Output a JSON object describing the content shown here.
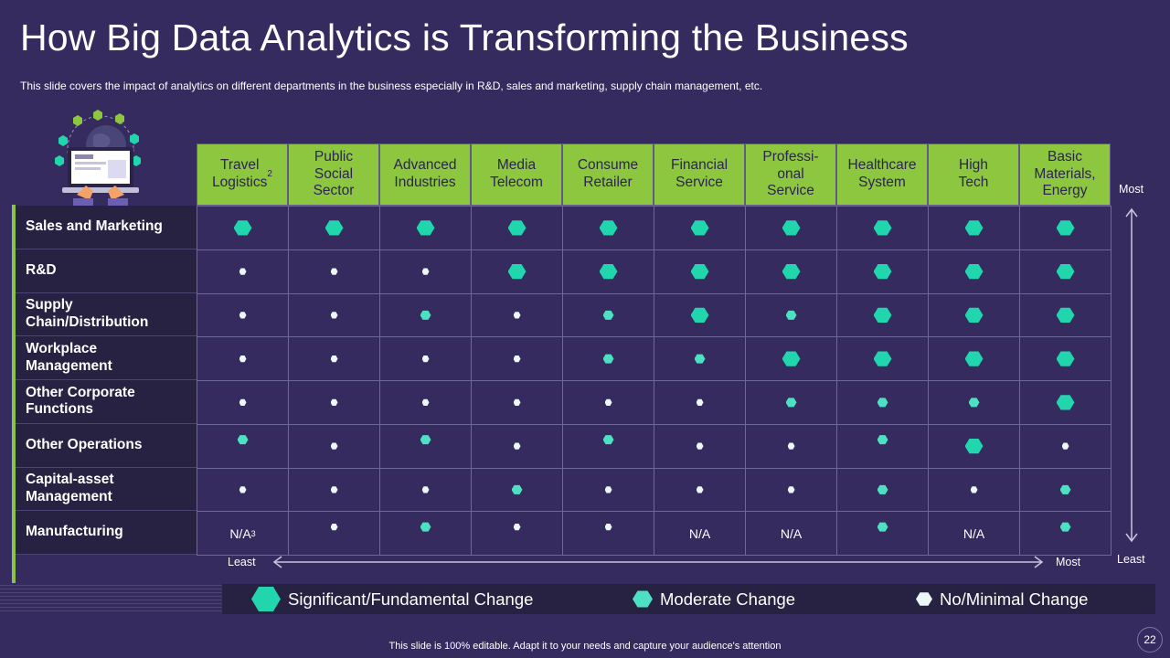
{
  "title": "How Big Data Analytics is Transforming the Business",
  "subtitle": "This slide covers the impact of analytics on different departments in the business especially in R&D, sales and marketing, supply chain management, etc.",
  "columns": [
    {
      "label": "Travel\nLogistics",
      "sup": "2"
    },
    {
      "label": "Public\nSocial\nSector",
      "sup": ""
    },
    {
      "label": "Advanced\nIndustries",
      "sup": ""
    },
    {
      "label": "Media\nTelecom",
      "sup": ""
    },
    {
      "label": "Consume\nRetailer",
      "sup": ""
    },
    {
      "label": "Financial\nService",
      "sup": ""
    },
    {
      "label": "Professi-\nonal\nService",
      "sup": ""
    },
    {
      "label": "Healthcare\nSystem",
      "sup": ""
    },
    {
      "label": "High\nTech",
      "sup": ""
    },
    {
      "label": "Basic\nMaterials,\nEnergy",
      "sup": ""
    }
  ],
  "rows": [
    {
      "label": "Sales and Marketing",
      "cells": [
        "sig",
        "sig",
        "sig",
        "sig",
        "sig",
        "sig",
        "sig",
        "sig",
        "sig",
        "sig"
      ]
    },
    {
      "label": "R&D",
      "cells": [
        "min",
        "min",
        "min",
        "sig",
        "sig",
        "sig",
        "sig",
        "sig",
        "sig",
        "sig"
      ]
    },
    {
      "label": "Supply\nChain/Distribution",
      "cells": [
        "min",
        "min",
        "mod",
        "min",
        "mod",
        "sig",
        "mod",
        "sig",
        "sig",
        "sig"
      ]
    },
    {
      "label": "Workplace\nManagement",
      "cells": [
        "min",
        "min",
        "min",
        "min",
        "mod",
        "mod",
        "sig",
        "sig",
        "sig",
        "sig"
      ]
    },
    {
      "label": "Other Corporate\nFunctions",
      "cells": [
        "min",
        "min",
        "min",
        "min",
        "min",
        "min",
        "mod",
        "mod",
        "mod",
        "sig"
      ]
    },
    {
      "label": "Other Operations",
      "cells": [
        "mod",
        "min",
        "mod",
        "min",
        "mod",
        "min",
        "min",
        "mod",
        "sig",
        "min"
      ]
    },
    {
      "label": "Capital-asset\nManagement",
      "cells": [
        "min",
        "min",
        "min",
        "mod",
        "min",
        "min",
        "min",
        "mod",
        "min",
        "mod"
      ]
    },
    {
      "label": "Manufacturing",
      "cells": [
        "N/A|3",
        "min",
        "mod",
        "min",
        "min",
        "N/A",
        "N/A",
        "mod",
        "N/A",
        "mod"
      ]
    }
  ],
  "axis": {
    "x_least": "Least",
    "x_most": "Most",
    "y_most": "Most",
    "y_least": "Least"
  },
  "legend": [
    {
      "level": "sig",
      "label": "Significant/Fundamental Change"
    },
    {
      "level": "mod",
      "label": "Moderate Change"
    },
    {
      "level": "min",
      "label": "No/Minimal Change"
    }
  ],
  "colors": {
    "background": "#352b5f",
    "header_green": "#8dc63f",
    "significant": "#21d6ac",
    "moderate": "#4fe0c4",
    "minimal": "#ecf7f8"
  },
  "footer": "This slide is 100% editable. Adapt it to your needs and capture your audience's attention",
  "page_number": "22"
}
